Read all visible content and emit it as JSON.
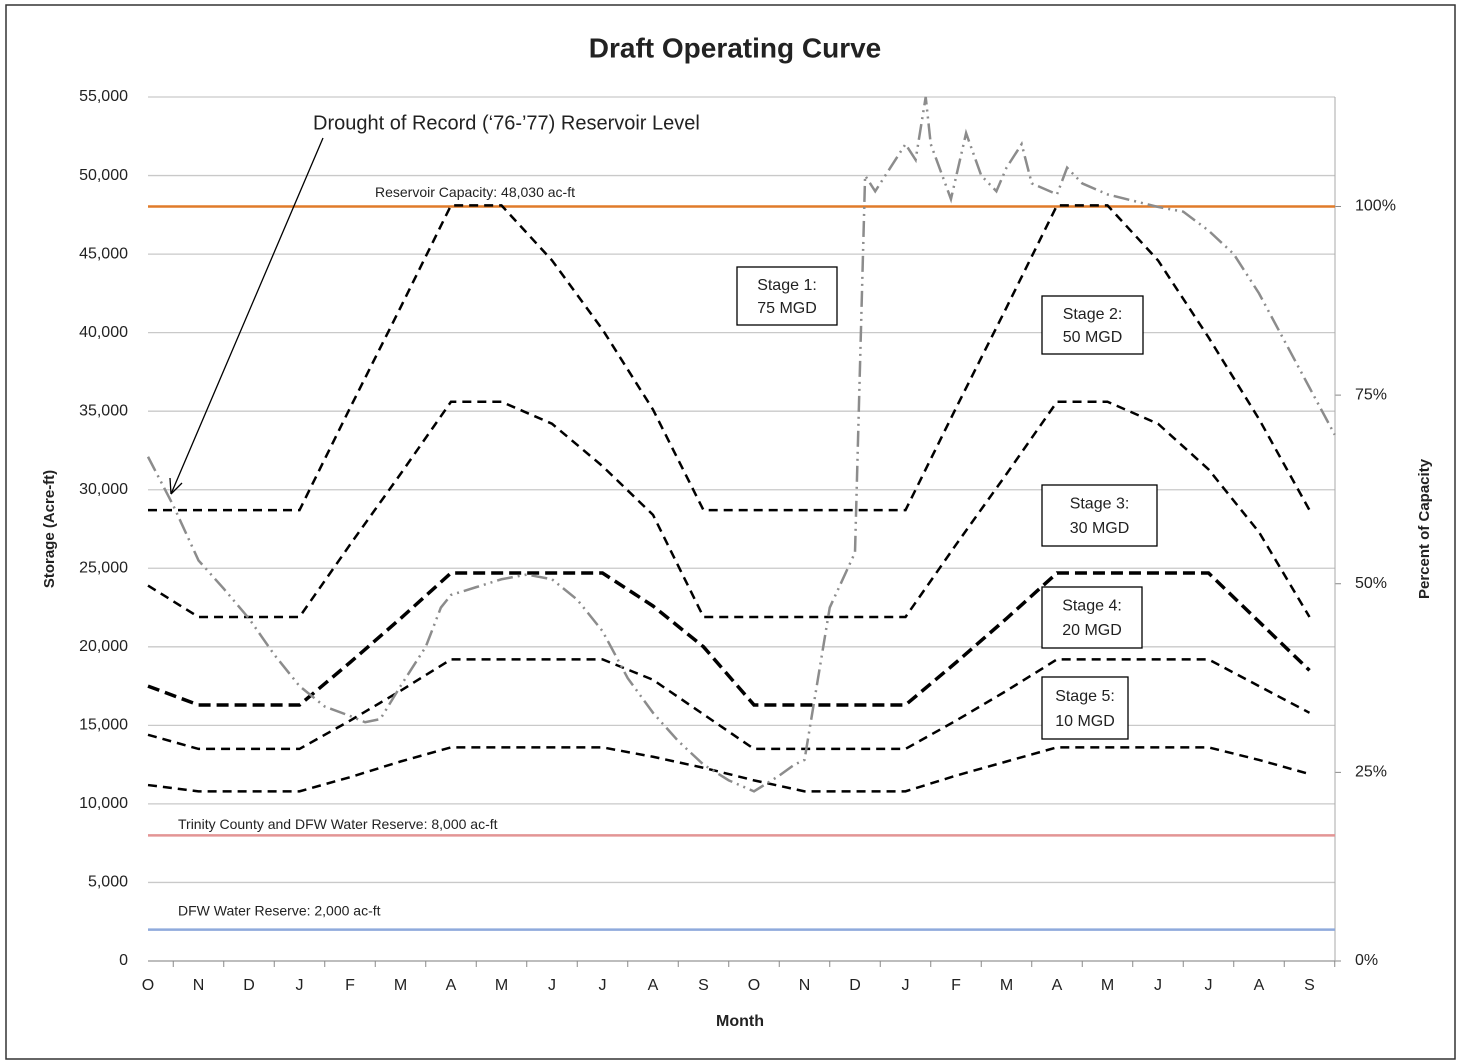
{
  "chart_data": {
    "type": "line",
    "title": "Draft Operating Curve",
    "x_label": "Month",
    "y_label": "Storage (Acre-ft)",
    "y2_label": "Percent of Capacity",
    "categories": [
      "O",
      "N",
      "D",
      "J",
      "F",
      "M",
      "A",
      "M",
      "J",
      "J",
      "A",
      "S",
      "O",
      "N",
      "D",
      "J",
      "F",
      "M",
      "A",
      "M",
      "J",
      "J",
      "A",
      "S"
    ],
    "ylim": [
      0,
      55000
    ],
    "yticks": [
      0,
      {
        "value": 5000,
        "label": "5,000"
      },
      {
        "value": 10000,
        "label": "10,000"
      },
      {
        "value": 15000,
        "label": "15,000"
      },
      {
        "value": 20000,
        "label": "20,000"
      },
      {
        "value": 25000,
        "label": "25,000"
      },
      {
        "value": 30000,
        "label": "30,000"
      },
      {
        "value": 35000,
        "label": "35,000"
      },
      {
        "value": 40000,
        "label": "40,000"
      },
      {
        "value": 45000,
        "label": "45,000"
      },
      {
        "value": 50000,
        "label": "50,000"
      },
      {
        "value": 55000,
        "label": "55,000"
      }
    ],
    "y2lim": [
      0,
      114.51
    ],
    "y2ticks": [
      {
        "value": 0,
        "label": "0%"
      },
      {
        "value": 25,
        "label": "25%"
      },
      {
        "value": 50,
        "label": "50%"
      },
      {
        "value": 75,
        "label": "75%"
      },
      {
        "value": 100,
        "label": "100%"
      }
    ],
    "grid": true,
    "series": [
      {
        "color": "#000000",
        "dash": "9 6",
        "width": 2.5,
        "values": [
          28700,
          28700,
          28700,
          28700,
          35200,
          41600,
          48100,
          48100,
          44600,
          40200,
          35100,
          28700,
          28700,
          28700,
          28700,
          28700,
          35200,
          41600,
          48100,
          48100,
          44600,
          39700,
          34500,
          28700
        ]
      },
      {
        "color": "#000000",
        "dash": "9 6",
        "width": 2.5,
        "values": [
          23900,
          21900,
          21900,
          21900,
          26500,
          31000,
          35600,
          35600,
          34200,
          31500,
          28400,
          21900,
          21900,
          21900,
          21900,
          21900,
          26500,
          31000,
          35600,
          35600,
          34200,
          31300,
          27300,
          21900
        ]
      },
      {
        "color": "#000000",
        "dash": "12 6",
        "width": 3.5,
        "values": [
          17500,
          16300,
          16300,
          16300,
          19000,
          21800,
          24700,
          24700,
          24700,
          24700,
          22600,
          20000,
          16300,
          16300,
          16300,
          16300,
          19000,
          21800,
          24700,
          24700,
          24700,
          24700,
          21600,
          18500
        ]
      },
      {
        "color": "#000000",
        "dash": "9 6",
        "width": 2.5,
        "values": [
          14400,
          13500,
          13500,
          13500,
          15300,
          17200,
          19200,
          19200,
          19200,
          19200,
          17900,
          15700,
          13500,
          13500,
          13500,
          13500,
          15300,
          17200,
          19200,
          19200,
          19200,
          19200,
          17500,
          15800
        ]
      },
      {
        "color": "#000000",
        "dash": "9 6",
        "width": 2.5,
        "values": [
          11200,
          10800,
          10800,
          10800,
          11700,
          12700,
          13600,
          13600,
          13600,
          13600,
          13000,
          12300,
          11500,
          10800,
          10800,
          10800,
          11800,
          12700,
          13600,
          13600,
          13600,
          13600,
          12800,
          11900
        ]
      },
      {
        "color": "#8c8c8c",
        "dash": "16 5 2 5 2 5",
        "width": 2.5,
        "x": [
          0,
          0.5,
          1,
          1.5,
          2,
          2.5,
          3,
          3.5,
          4,
          4.3,
          4.6,
          5,
          5.5,
          5.8,
          6,
          6.5,
          7,
          7.5,
          8,
          8.5,
          9,
          9.5,
          10,
          10.5,
          11,
          11.5,
          12,
          12.5,
          12.8,
          13,
          13.5,
          14,
          14.2,
          14.4,
          14.7,
          15,
          15.2,
          15.4,
          15.5,
          15.9,
          16.2,
          16.5,
          16.8,
          17,
          17.3,
          17.5,
          18,
          18.2,
          18.5,
          19,
          19.5,
          20,
          20.5,
          21,
          21.5,
          22,
          22.5,
          23,
          23.5
        ],
        "values": [
          32100,
          29000,
          25500,
          23700,
          21800,
          19500,
          17500,
          16200,
          15600,
          15200,
          15400,
          17500,
          20000,
          22500,
          23300,
          23800,
          24300,
          24600,
          24300,
          23000,
          21000,
          18000,
          15800,
          14000,
          12500,
          11500,
          10800,
          11800,
          12500,
          12800,
          22500,
          26000,
          50000,
          49000,
          50500,
          52000,
          51000,
          55000,
          52000,
          48500,
          52700,
          50000,
          49000,
          50500,
          52000,
          49500,
          48800,
          50500,
          49500,
          48800,
          48400,
          48000,
          47700,
          46500,
          45000,
          42500,
          39500,
          36500,
          33500
        ]
      }
    ],
    "reference_lines": [
      {
        "value": 48030,
        "color": "#e07b2a",
        "label": "Reservoir Capacity: 48,030 ac-ft"
      },
      {
        "value": 8000,
        "color": "#e39595",
        "label": "Trinity County and DFW Water Reserve: 8,000 ac-ft"
      },
      {
        "value": 2000,
        "color": "#8faadc",
        "label": "DFW Water Reserve: 2,000 ac-ft"
      }
    ],
    "annotations": [
      {
        "text": "Drought of Record (‘76-’77) Reservoir Level"
      },
      {
        "lines": [
          "Stage 1:",
          "75 MGD"
        ]
      },
      {
        "lines": [
          "Stage 2:",
          "50 MGD"
        ]
      },
      {
        "lines": [
          "Stage 3:",
          "30 MGD"
        ]
      },
      {
        "lines": [
          "Stage 4:",
          "20 MGD"
        ]
      },
      {
        "lines": [
          "Stage 5:",
          "10 MGD"
        ]
      }
    ]
  }
}
